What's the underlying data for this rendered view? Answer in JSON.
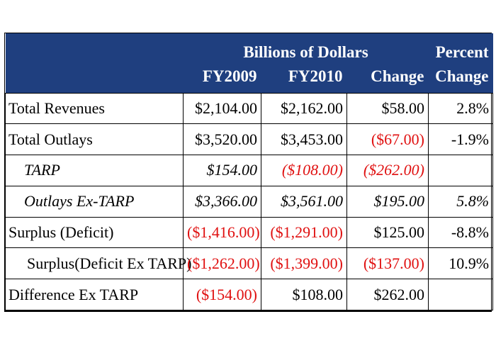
{
  "header": {
    "group_label": "Billions of Dollars",
    "percent_label": "Percent",
    "columns": [
      "FY2009",
      "FY2010",
      "Change",
      "Change"
    ]
  },
  "rows": [
    {
      "label": "Total Revenues",
      "fy2009": "$2,104.00",
      "fy2010": "$2,162.00",
      "change": "$58.00",
      "percent": "2.8%"
    },
    {
      "label": "Total Outlays",
      "fy2009": "$3,520.00",
      "fy2010": "$3,453.00",
      "change": "($67.00)",
      "percent": "-1.9%"
    },
    {
      "label": "TARP",
      "fy2009": "$154.00",
      "fy2010": "($108.00)",
      "change": "($262.00)",
      "percent": ""
    },
    {
      "label": "Outlays Ex-TARP",
      "fy2009": "$3,366.00",
      "fy2010": "$3,561.00",
      "change": "$195.00",
      "percent": "5.8%"
    },
    {
      "label": "Surplus (Deficit)",
      "fy2009": "($1,416.00)",
      "fy2010": "($1,291.00)",
      "change": "$125.00",
      "percent": "-8.8%"
    },
    {
      "label": "Surplus(Deficit Ex TARP)",
      "fy2009": "($1,262.00)",
      "fy2010": "($1,399.00)",
      "change": "($137.00)",
      "percent": "10.9%"
    },
    {
      "label": "Difference Ex TARP",
      "fy2009": "($154.00)",
      "fy2010": "$108.00",
      "change": "$262.00",
      "percent": ""
    }
  ],
  "colors": {
    "header_bg": "#1f3f7f",
    "header_text": "#ffffff",
    "negative": "#e01010",
    "text": "#000000"
  }
}
